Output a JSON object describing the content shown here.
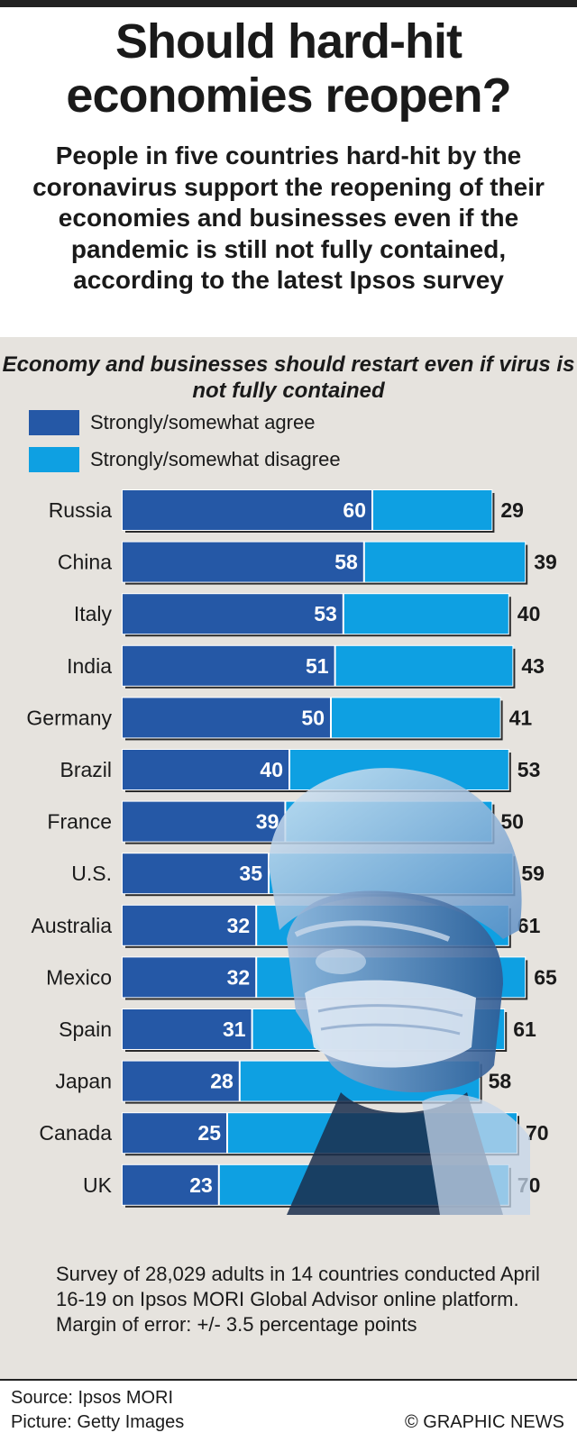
{
  "title": "Should hard-hit economies reopen?",
  "subtitle": "People in five countries hard-hit by the coronavirus support the reopening of their economies and businesses even if the pandemic is still not fully contained, according to the latest Ipsos survey",
  "notes": "Survey of 28,029 adults in 14 countries conducted April 16-19 on Ipsos MORI Global Advisor online platform. Margin of error: +/- 3.5 percentage points",
  "source": "Source: Ipsos MORI",
  "picture": "Picture: Getty Images",
  "credit": "© GRAPHIC NEWS",
  "colors": {
    "agree": "#2558a6",
    "disagree": "#0ea0e2",
    "panel": "#e6e3de"
  },
  "chart_data": {
    "type": "bar",
    "orientation": "horizontal",
    "stacked": true,
    "title": "Economy and businesses should restart even if virus is not fully contained",
    "legend_position": "top-left",
    "categories": [
      "Russia",
      "China",
      "Italy",
      "India",
      "Germany",
      "Brazil",
      "France",
      "U.S.",
      "Australia",
      "Mexico",
      "Spain",
      "Japan",
      "Canada",
      "UK"
    ],
    "series": [
      {
        "name": "Strongly/somewhat agree",
        "color": "#2558a6",
        "values": [
          60,
          58,
          53,
          51,
          50,
          40,
          39,
          35,
          32,
          32,
          31,
          28,
          25,
          23
        ]
      },
      {
        "name": "Strongly/somewhat disagree",
        "color": "#0ea0e2",
        "values": [
          29,
          39,
          40,
          43,
          41,
          53,
          50,
          59,
          61,
          65,
          61,
          58,
          70,
          70
        ]
      }
    ]
  }
}
